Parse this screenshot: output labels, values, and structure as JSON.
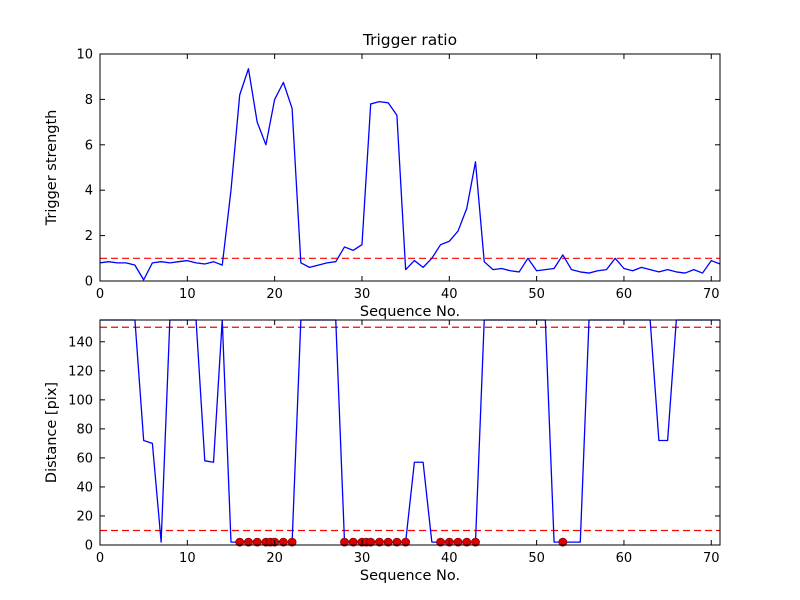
{
  "figure": {
    "background": "#ffffff",
    "line_color": "#0000ff",
    "threshold_color": "#ff0000",
    "marker_color": "#dd0000",
    "marker_edge": "#8b0000"
  },
  "chart_data": [
    {
      "type": "line",
      "title": "Trigger ratio",
      "xlabel": "Sequence No.",
      "ylabel": "Trigger strength",
      "xlim": [
        0,
        71
      ],
      "ylim": [
        0,
        10
      ],
      "xticks": [
        0,
        10,
        20,
        30,
        40,
        50,
        60,
        70
      ],
      "yticks": [
        0,
        2,
        4,
        6,
        8,
        10
      ],
      "grid": false,
      "legend": "none",
      "series": [
        {
          "name": "trigger-strength",
          "color": "#0000ff",
          "y": [
            0.8,
            0.85,
            0.8,
            0.8,
            0.7,
            0.05,
            0.8,
            0.85,
            0.8,
            0.85,
            0.9,
            0.8,
            0.75,
            0.85,
            0.7,
            4.0,
            8.2,
            9.35,
            7.0,
            6.0,
            8.0,
            8.75,
            7.6,
            0.8,
            0.6,
            0.7,
            0.8,
            0.85,
            1.5,
            1.35,
            1.6,
            7.8,
            7.9,
            7.85,
            7.3,
            0.5,
            0.9,
            0.6,
            1.0,
            1.6,
            1.75,
            2.2,
            3.2,
            5.25,
            0.85,
            0.5,
            0.55,
            0.45,
            0.4,
            1.0,
            0.45,
            0.5,
            0.55,
            1.15,
            0.5,
            0.4,
            0.35,
            0.45,
            0.5,
            1.0,
            0.55,
            0.45,
            0.6,
            0.5,
            0.4,
            0.5,
            0.4,
            0.35,
            0.5,
            0.35,
            0.9,
            0.75
          ]
        }
      ],
      "hlines": [
        {
          "name": "trigger-threshold",
          "y": 1,
          "color": "#ff0000",
          "style": "dashed"
        }
      ]
    },
    {
      "type": "line",
      "title": "",
      "xlabel": "Sequence No.",
      "ylabel": "Distance [pix]",
      "xlim": [
        0,
        71
      ],
      "ylim": [
        0,
        155
      ],
      "xticks": [
        0,
        10,
        20,
        30,
        40,
        50,
        60,
        70
      ],
      "yticks": [
        0,
        20,
        40,
        60,
        80,
        100,
        120,
        140
      ],
      "grid": false,
      "legend": "none",
      "series": [
        {
          "name": "distance",
          "color": "#0000ff",
          "y": [
            155,
            155,
            155,
            155,
            155,
            72,
            70,
            2,
            155,
            155,
            155,
            155,
            58,
            57,
            155,
            2,
            2,
            3,
            2,
            2,
            3,
            2,
            2,
            155,
            155,
            155,
            155,
            155,
            2,
            3,
            2,
            2,
            3,
            2,
            2,
            2,
            57,
            57,
            2,
            2,
            3,
            2,
            2,
            2,
            155,
            155,
            155,
            155,
            155,
            155,
            155,
            155,
            2,
            2,
            2,
            2,
            155,
            155,
            155,
            155,
            155,
            155,
            155,
            155,
            72,
            72,
            155,
            155,
            155,
            155,
            155,
            155
          ]
        }
      ],
      "hlines": [
        {
          "name": "upper-distance-threshold",
          "y": 150,
          "color": "#ff0000",
          "style": "dashed"
        },
        {
          "name": "lower-distance-threshold",
          "y": 10,
          "color": "#ff0000",
          "style": "dashed"
        }
      ],
      "scatter": [
        {
          "name": "matched-points",
          "color": "#dd0000",
          "edge": "#8b0000",
          "x": [
            16,
            17,
            18,
            19,
            19.5,
            20,
            21,
            22,
            28,
            29,
            30,
            30.5,
            31,
            32,
            33,
            34,
            35,
            39,
            40,
            41,
            42,
            43,
            53
          ],
          "y": [
            2,
            2,
            2,
            2,
            2,
            2,
            2,
            2,
            2,
            2,
            2,
            2,
            2,
            2,
            2,
            2,
            2,
            2,
            2,
            2,
            2,
            2,
            2
          ]
        }
      ]
    }
  ]
}
